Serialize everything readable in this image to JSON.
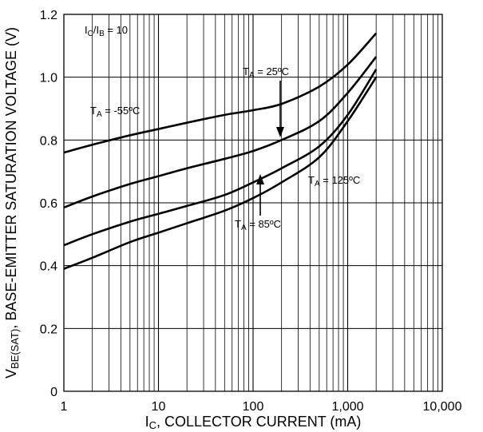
{
  "chart_data": {
    "type": "line",
    "x_scale": "log",
    "xlim": [
      1,
      10000
    ],
    "ylim": [
      0,
      1.2
    ],
    "grid": true,
    "xlabel": {
      "prefix": "I",
      "sub": "C",
      "rest": ", COLLECTOR CURRENT (mA)"
    },
    "ylabel": {
      "prefix": "V",
      "sub": "BE(SAT)",
      "rest": ", BASE-EMITTER SATURATION VOLTAGE (V)"
    },
    "x_ticks": [
      {
        "value": 1,
        "label": "1"
      },
      {
        "value": 10,
        "label": "10"
      },
      {
        "value": 100,
        "label": "100"
      },
      {
        "value": 1000,
        "label": "1,000"
      },
      {
        "value": 10000,
        "label": "10,000"
      }
    ],
    "y_ticks": [
      {
        "value": 0,
        "label": "0"
      },
      {
        "value": 0.2,
        "label": "0.2"
      },
      {
        "value": 0.4,
        "label": "0.4"
      },
      {
        "value": 0.6,
        "label": "0.6"
      },
      {
        "value": 0.8,
        "label": "0.8"
      },
      {
        "value": 1.0,
        "label": "1.0"
      },
      {
        "value": 1.2,
        "label": "1.2"
      }
    ],
    "condition_annotation": {
      "a": "I",
      "a_sub": "C",
      "mid": "/I",
      "b_sub": "B",
      "rest": " = 10"
    },
    "series": [
      {
        "curve_label": {
          "main": "T",
          "sub": "A",
          "rest": " = -55ºC"
        },
        "points": [
          [
            1,
            0.76
          ],
          [
            2,
            0.785
          ],
          [
            5,
            0.815
          ],
          [
            10,
            0.835
          ],
          [
            20,
            0.855
          ],
          [
            50,
            0.88
          ],
          [
            100,
            0.895
          ],
          [
            200,
            0.915
          ],
          [
            500,
            0.97
          ],
          [
            1000,
            1.04
          ],
          [
            2000,
            1.14
          ]
        ]
      },
      {
        "curve_label": {
          "main": "T",
          "sub": "A",
          "rest": " = 25ºC"
        },
        "points": [
          [
            1,
            0.585
          ],
          [
            2,
            0.62
          ],
          [
            5,
            0.66
          ],
          [
            10,
            0.685
          ],
          [
            20,
            0.71
          ],
          [
            50,
            0.74
          ],
          [
            100,
            0.765
          ],
          [
            200,
            0.8
          ],
          [
            500,
            0.86
          ],
          [
            1000,
            0.95
          ],
          [
            2000,
            1.065
          ]
        ]
      },
      {
        "curve_label": {
          "main": "T",
          "sub": "A",
          "rest": " = 85ºC"
        },
        "points": [
          [
            1,
            0.465
          ],
          [
            2,
            0.5
          ],
          [
            5,
            0.54
          ],
          [
            10,
            0.565
          ],
          [
            20,
            0.59
          ],
          [
            50,
            0.625
          ],
          [
            100,
            0.665
          ],
          [
            200,
            0.71
          ],
          [
            500,
            0.78
          ],
          [
            1000,
            0.88
          ],
          [
            2000,
            1.025
          ]
        ]
      },
      {
        "curve_label": {
          "main": "T",
          "sub": "A",
          "rest": " = 125ºC"
        },
        "points": [
          [
            1,
            0.39
          ],
          [
            2,
            0.425
          ],
          [
            5,
            0.475
          ],
          [
            10,
            0.505
          ],
          [
            20,
            0.535
          ],
          [
            50,
            0.575
          ],
          [
            100,
            0.615
          ],
          [
            200,
            0.665
          ],
          [
            500,
            0.745
          ],
          [
            1000,
            0.86
          ],
          [
            2000,
            1.0
          ]
        ]
      }
    ]
  }
}
